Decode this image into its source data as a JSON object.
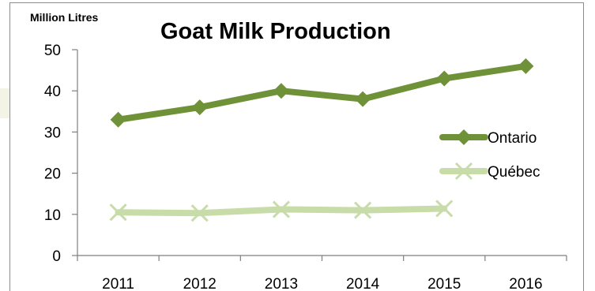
{
  "chart_data": {
    "type": "line",
    "title": "Goat Milk Production",
    "ylabel": "Million Litres",
    "xlabel": "",
    "categories": [
      "2011",
      "2012",
      "2013",
      "2014",
      "2015",
      "2016"
    ],
    "ylim": [
      0,
      50
    ],
    "yticks": [
      "0",
      "10",
      "20",
      "30",
      "40",
      "50"
    ],
    "grid": false,
    "legend": "right",
    "series": [
      {
        "name": "Ontario",
        "values": [
          33,
          36,
          40,
          38,
          43,
          46
        ],
        "color": "#6f9138",
        "marker": "diamond"
      },
      {
        "name": "Québec",
        "values": [
          10.5,
          10.3,
          11.2,
          11,
          11.4,
          null
        ],
        "color": "#c8dcaa",
        "marker": "x"
      }
    ]
  }
}
